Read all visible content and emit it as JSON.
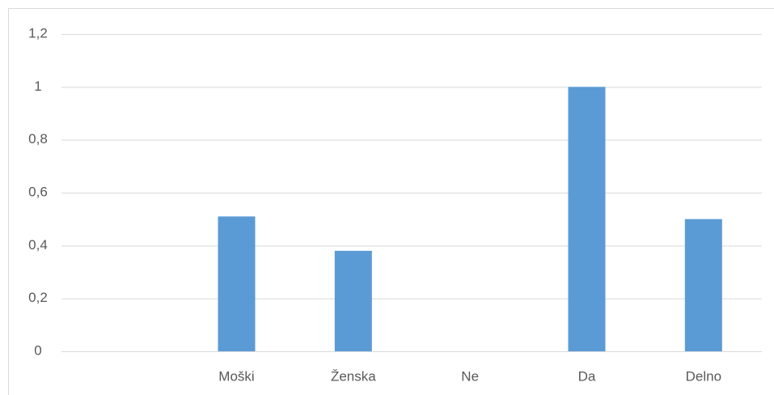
{
  "chart_data": {
    "type": "bar",
    "categories": [
      null,
      "Moški",
      "Ženska",
      "Ne",
      "Da",
      "Delno"
    ],
    "values": [
      null,
      0.51,
      0.38,
      0,
      1,
      0.5
    ],
    "color": "#5b9bd5",
    "ylim": [
      0,
      1.2
    ],
    "yticks": [
      0,
      {
        "value": 0.2,
        "label": "0,2"
      },
      {
        "value": 0.4,
        "label": "0,4"
      },
      {
        "value": 0.6,
        "label": "0,6"
      },
      {
        "value": 0.8,
        "label": "0,8"
      },
      1,
      {
        "value": 1.2,
        "label": "1,2"
      }
    ],
    "grid": true
  }
}
